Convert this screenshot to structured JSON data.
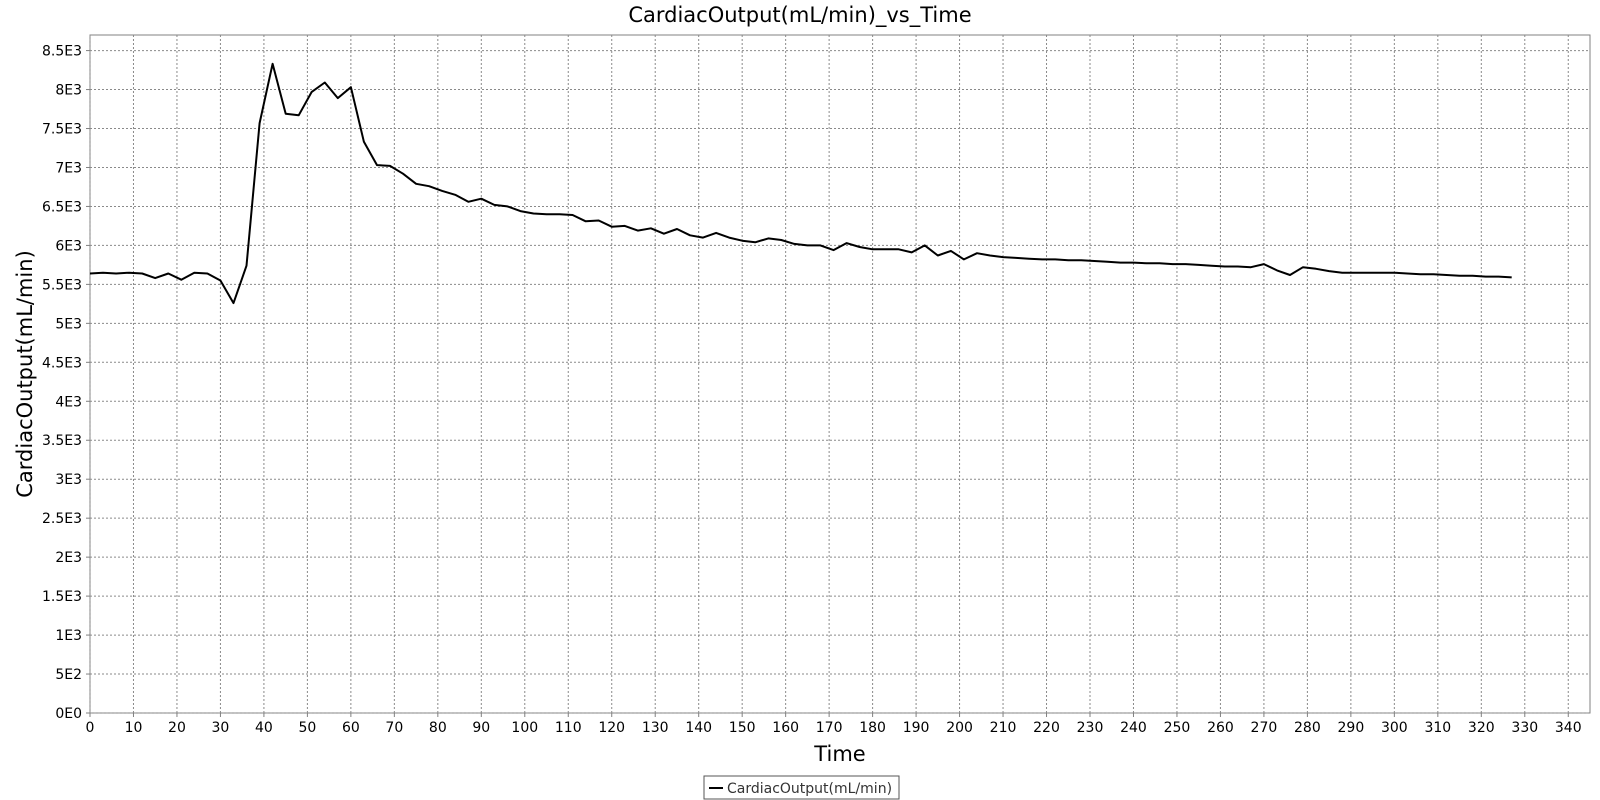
{
  "chart_data": {
    "type": "line",
    "title": "CardiacOutput(mL/min)_vs_Time",
    "xlabel": "Time",
    "ylabel": "CardiacOutput(mL/min)",
    "xlim": [
      0,
      345
    ],
    "ylim": [
      0,
      8700
    ],
    "grid": true,
    "legend_position": "bottom-center",
    "x_ticks": [
      "0",
      "10",
      "20",
      "30",
      "40",
      "50",
      "60",
      "70",
      "80",
      "90",
      "100",
      "110",
      "120",
      "130",
      "140",
      "150",
      "160",
      "170",
      "180",
      "190",
      "200",
      "210",
      "220",
      "230",
      "240",
      "250",
      "260",
      "270",
      "280",
      "290",
      "300",
      "310",
      "320",
      "330",
      "340"
    ],
    "x_tick_values": [
      0,
      10,
      20,
      30,
      40,
      50,
      60,
      70,
      80,
      90,
      100,
      110,
      120,
      130,
      140,
      150,
      160,
      170,
      180,
      190,
      200,
      210,
      220,
      230,
      240,
      250,
      260,
      270,
      280,
      290,
      300,
      310,
      320,
      330,
      340
    ],
    "y_ticks": [
      "0E0",
      "5E2",
      "1E3",
      "1.5E3",
      "2E3",
      "2.5E3",
      "3E3",
      "3.5E3",
      "4E3",
      "4.5E3",
      "5E3",
      "5.5E3",
      "6E3",
      "6.5E3",
      "7E3",
      "7.5E3",
      "8E3",
      "8.5E3"
    ],
    "y_tick_values": [
      0,
      500,
      1000,
      1500,
      2000,
      2500,
      3000,
      3500,
      4000,
      4500,
      5000,
      5500,
      6000,
      6500,
      7000,
      7500,
      8000,
      8500
    ],
    "series": [
      {
        "name": "CardiacOutput(mL/min)",
        "color": "#000000",
        "x": [
          0,
          3,
          6,
          9,
          12,
          15,
          18,
          21,
          24,
          27,
          30,
          33,
          36,
          39,
          42,
          45,
          48,
          51,
          54,
          57,
          60,
          63,
          66,
          69,
          72,
          75,
          78,
          81,
          84,
          87,
          90,
          93,
          96,
          99,
          102,
          105,
          108,
          111,
          114,
          117,
          120,
          123,
          126,
          129,
          132,
          135,
          138,
          141,
          144,
          147,
          150,
          153,
          156,
          159,
          162,
          165,
          168,
          171,
          174,
          177,
          180,
          183,
          186,
          189,
          192,
          195,
          198,
          201,
          204,
          207,
          210,
          213,
          216,
          219,
          222,
          225,
          228,
          231,
          234,
          237,
          240,
          243,
          246,
          249,
          252,
          255,
          258,
          261,
          264,
          267,
          270,
          273,
          276,
          279,
          282,
          285,
          288,
          291,
          294,
          297,
          300,
          303,
          306,
          309,
          312,
          315,
          318,
          321,
          324,
          327
        ],
        "y": [
          5640,
          5650,
          5640,
          5650,
          5640,
          5580,
          5640,
          5560,
          5650,
          5640,
          5550,
          5260,
          5740,
          7570,
          8330,
          7690,
          7670,
          7970,
          8090,
          7890,
          8030,
          7330,
          7030,
          7020,
          6920,
          6790,
          6760,
          6700,
          6650,
          6560,
          6600,
          6520,
          6500,
          6440,
          6410,
          6400,
          6400,
          6390,
          6310,
          6320,
          6240,
          6250,
          6190,
          6220,
          6150,
          6210,
          6130,
          6100,
          6160,
          6100,
          6060,
          6040,
          6090,
          6070,
          6020,
          6000,
          6000,
          5940,
          6030,
          5980,
          5950,
          5950,
          5950,
          5910,
          6000,
          5870,
          5930,
          5820,
          5900,
          5870,
          5850,
          5840,
          5830,
          5820,
          5820,
          5810,
          5810,
          5800,
          5790,
          5780,
          5780,
          5770,
          5770,
          5760,
          5760,
          5750,
          5740,
          5730,
          5730,
          5720,
          5760,
          5680,
          5620,
          5720,
          5700,
          5670,
          5650,
          5650,
          5650,
          5650,
          5650,
          5640,
          5630,
          5630,
          5620,
          5610,
          5610,
          5600,
          5600,
          5590
        ]
      }
    ]
  }
}
